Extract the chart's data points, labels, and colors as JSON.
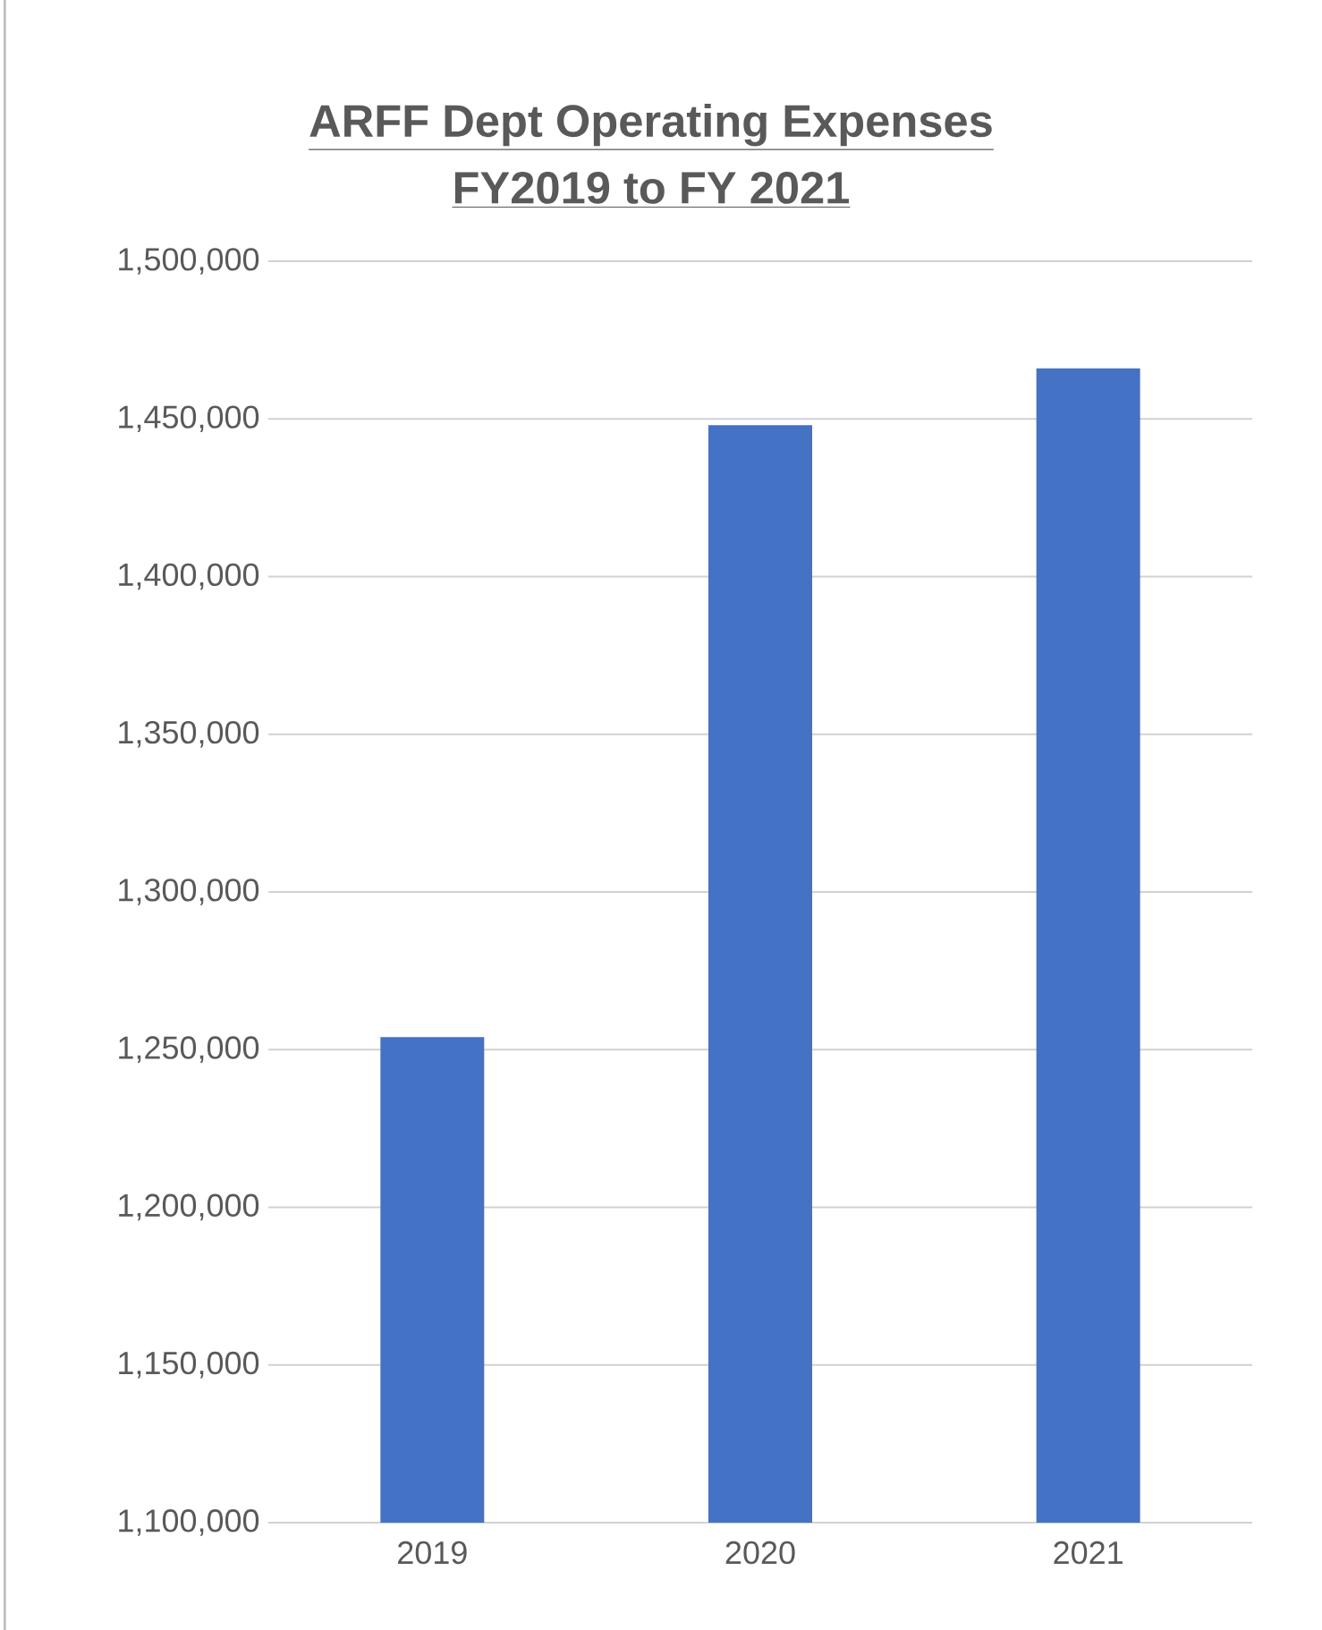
{
  "chart_data": {
    "type": "bar",
    "title": "ARFF Dept Operating Expenses",
    "subtitle": "FY2019 to FY 2021",
    "categories": [
      "2019",
      "2020",
      "2021"
    ],
    "values": [
      1254000,
      1448000,
      1466000
    ],
    "color": "#4472c4",
    "ylim": [
      1100000,
      1500000
    ],
    "yticks": [
      {
        "value": 1100000,
        "label": "1,100,000"
      },
      {
        "value": 1150000,
        "label": "1,150,000"
      },
      {
        "value": 1200000,
        "label": "1,200,000"
      },
      {
        "value": 1250000,
        "label": "1,250,000"
      },
      {
        "value": 1300000,
        "label": "1,300,000"
      },
      {
        "value": 1350000,
        "label": "1,350,000"
      },
      {
        "value": 1400000,
        "label": "1,400,000"
      },
      {
        "value": 1450000,
        "label": "1,450,000"
      },
      {
        "value": 1500000,
        "label": "1,500,000"
      }
    ],
    "grid": "y"
  }
}
